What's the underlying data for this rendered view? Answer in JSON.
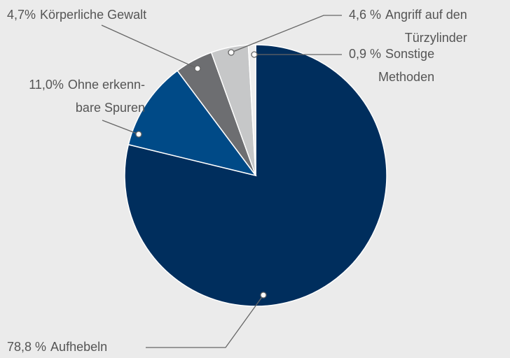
{
  "chart_data": {
    "type": "pie",
    "categories": [
      [
        "Aufhebeln"
      ],
      [
        "Ohne erkenn-",
        "bare Spuren"
      ],
      [
        "Körperliche Gewalt"
      ],
      [
        "Angriff auf den",
        "Türzylinder"
      ],
      [
        "Sonstige",
        "Methoden"
      ]
    ],
    "values": [
      78.8,
      11.0,
      4.7,
      4.6,
      0.9
    ],
    "value_labels": [
      "78,8 %",
      "11,0%",
      "4,7%",
      "4,6 %",
      "0,9 %"
    ],
    "colors": [
      "#002e5d",
      "#004a87",
      "#6d6e71",
      "#c6c7c8",
      "#eeeeee"
    ]
  }
}
